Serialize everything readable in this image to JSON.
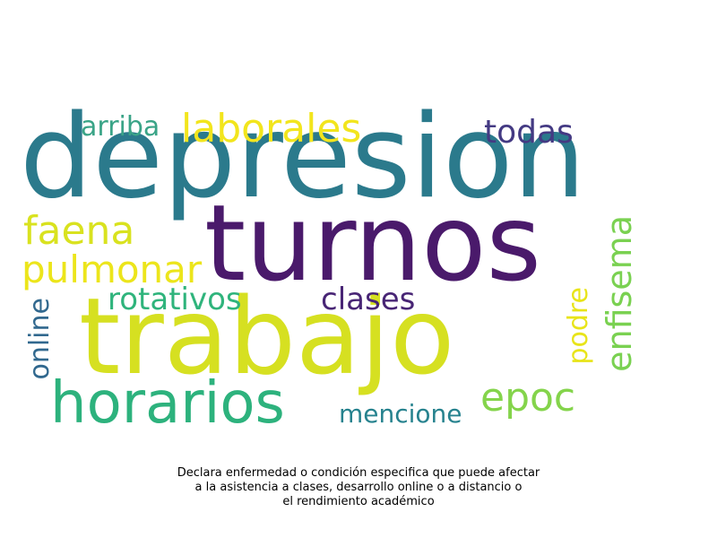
{
  "words": [
    {
      "text": "depresion",
      "color": "#2b7a8c"
    },
    {
      "text": "turnos",
      "color": "#4a1a6b"
    },
    {
      "text": "trabajo",
      "color": "#d6e021"
    },
    {
      "text": "horarios",
      "color": "#2db27d"
    },
    {
      "text": "laborales",
      "color": "#f2e51d"
    },
    {
      "text": "arriba",
      "color": "#3aa487"
    },
    {
      "text": "todas",
      "color": "#443a83"
    },
    {
      "text": "faena",
      "color": "#d9e21f"
    },
    {
      "text": "pulmonar",
      "color": "#ece51b"
    },
    {
      "text": "rotativos",
      "color": "#2fb47c"
    },
    {
      "text": "clases",
      "color": "#482575"
    },
    {
      "text": "enfisema",
      "color": "#7ad151"
    },
    {
      "text": "podre",
      "color": "#e8e419"
    },
    {
      "text": "online",
      "color": "#31688e"
    },
    {
      "text": "epoc",
      "color": "#84d44b"
    },
    {
      "text": "mencione",
      "color": "#26828e"
    }
  ],
  "caption": {
    "line1": "Declara enfermedad o condición especifica que puede afectar",
    "line2": "a la asistencia a clases, desarrollo online o a distancio o",
    "line3": "el rendimiento académico"
  }
}
